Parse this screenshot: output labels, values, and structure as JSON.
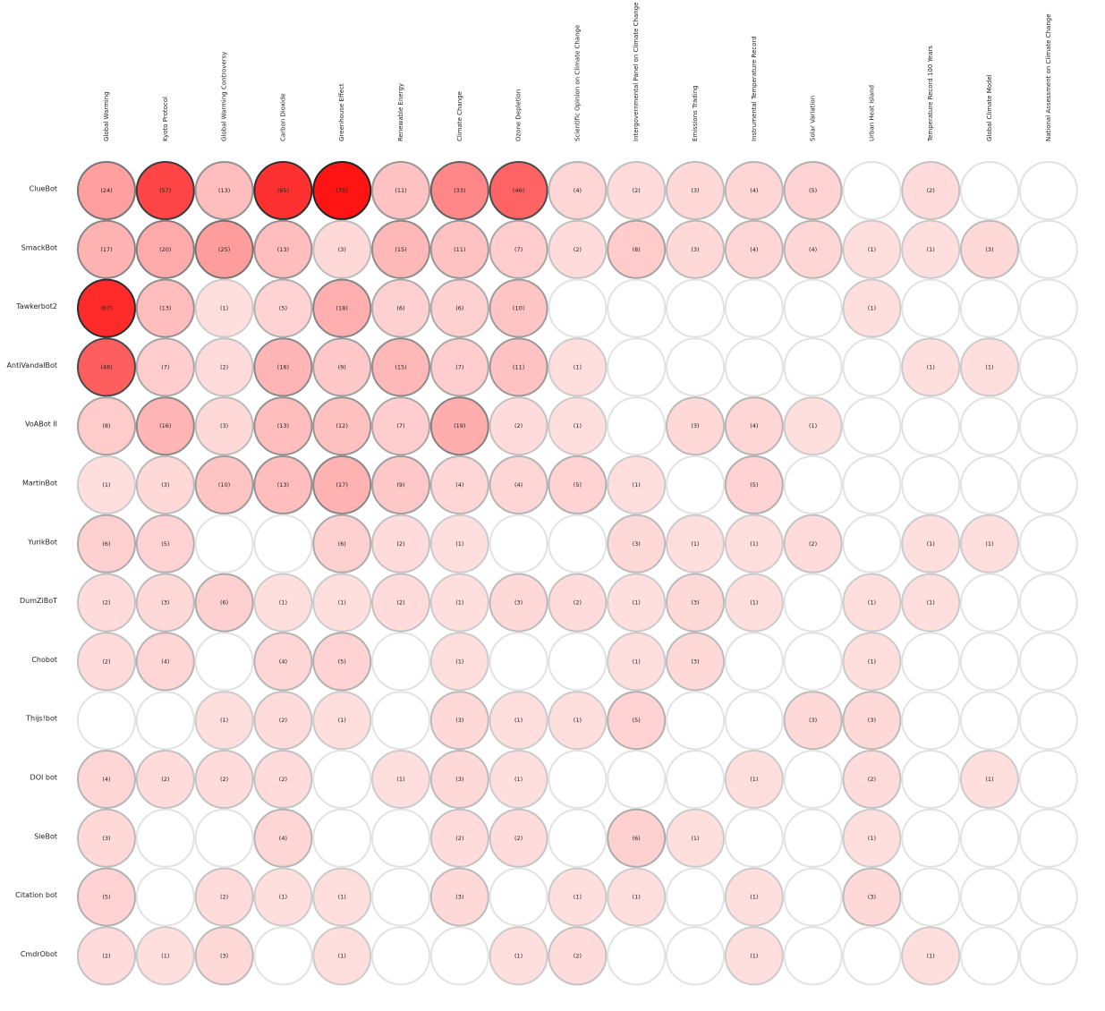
{
  "chart_data": {
    "type": "heatmap",
    "color": "#ff0000",
    "categories": [
      "Global Warming",
      "Kyoto Protocol",
      "Global Warming Controversy",
      "Carbon Dioxide",
      "Greenhouse Effect",
      "Renewable Energy",
      "Climate Change",
      "Ozone Depletion",
      "Scientific Opinion on Climate Change",
      "Intergovernmental Panel on Climate Change",
      "Emissions Trading",
      "Instrumental Temperature Record",
      "Solar Variation",
      "Urban Heat Island",
      "Temperature Record 100 Years",
      "Global Climate Model",
      "National Assessment on Climate Change"
    ],
    "series": [
      {
        "name": "ClueBot",
        "values": [
          24,
          57,
          13,
          65,
          75,
          11,
          33,
          46,
          4,
          2,
          3,
          4,
          5,
          null,
          2,
          null,
          null
        ],
        "value_labels": [
          "(24)",
          "(57)",
          "(13)",
          "(65)",
          "(75)",
          "(11)",
          "(33)",
          "(46)",
          "(4)",
          "(2)",
          "(3)",
          "(4)",
          "(5)",
          null,
          "(2)",
          null,
          null
        ]
      },
      {
        "name": "SmackBot",
        "values": [
          17,
          20,
          25,
          13,
          3,
          15,
          11,
          7,
          2,
          8,
          3,
          4,
          4,
          1,
          1,
          3,
          null
        ],
        "value_labels": [
          "(17)",
          "(20)",
          "(25)",
          "(13)",
          "(3)",
          "(15)",
          "(11)",
          "(7)",
          "(2)",
          "(8)",
          "(3)",
          "(4)",
          "(4)",
          "(1)",
          "(1)",
          "(3)",
          null
        ]
      },
      {
        "name": "Tawkerbot2",
        "values": [
          67,
          13,
          1,
          5,
          18,
          6,
          6,
          10,
          null,
          null,
          null,
          null,
          null,
          1,
          null,
          null,
          null
        ],
        "value_labels": [
          "(67)",
          "(13)",
          "(1)",
          "(5)",
          "(18)",
          "(6)",
          "(6)",
          "(10)",
          null,
          null,
          null,
          null,
          null,
          "(1)",
          null,
          null,
          null
        ]
      },
      {
        "name": "AntiVandalBot",
        "values": [
          48,
          7,
          2,
          16,
          9,
          15,
          7,
          11,
          1,
          null,
          null,
          null,
          null,
          null,
          1,
          1,
          null
        ],
        "value_labels": [
          "(48)",
          "(7)",
          "(2)",
          "(16)",
          "(9)",
          "(15)",
          "(7)",
          "(11)",
          "(1)",
          null,
          null,
          null,
          null,
          null,
          "(1)",
          "(1)",
          null
        ]
      },
      {
        "name": "VoABot II",
        "values": [
          8,
          16,
          3,
          13,
          12,
          7,
          19,
          2,
          1,
          null,
          3,
          4,
          1,
          null,
          null,
          null,
          null
        ],
        "value_labels": [
          "(8)",
          "(16)",
          "(3)",
          "(13)",
          "(12)",
          "(7)",
          "(19)",
          "(2)",
          "(1)",
          null,
          "(3)",
          "(4)",
          "(1)",
          null,
          null,
          null,
          null
        ]
      },
      {
        "name": "MartinBot",
        "values": [
          1,
          3,
          10,
          13,
          17,
          9,
          4,
          4,
          5,
          1,
          null,
          5,
          null,
          null,
          null,
          null,
          null
        ],
        "value_labels": [
          "(1)",
          "(3)",
          "(10)",
          "(13)",
          "(17)",
          "(9)",
          "(4)",
          "(4)",
          "(5)",
          "(1)",
          null,
          "(5)",
          null,
          null,
          null,
          null,
          null
        ]
      },
      {
        "name": "YurikBot",
        "values": [
          6,
          5,
          null,
          null,
          6,
          2,
          1,
          null,
          null,
          3,
          1,
          1,
          2,
          null,
          1,
          1,
          null
        ],
        "value_labels": [
          "(6)",
          "(5)",
          null,
          null,
          "(6)",
          "(2)",
          "(1)",
          null,
          null,
          "(3)",
          "(1)",
          "(1)",
          "(2)",
          null,
          "(1)",
          "(1)",
          null
        ]
      },
      {
        "name": "DumZiBoT",
        "values": [
          2,
          3,
          6,
          1,
          1,
          2,
          1,
          3,
          2,
          1,
          3,
          1,
          null,
          1,
          1,
          null,
          null
        ],
        "value_labels": [
          "(2)",
          "(3)",
          "(6)",
          "(1)",
          "(1)",
          "(2)",
          "(1)",
          "(3)",
          "(2)",
          "(1)",
          "(3)",
          "(1)",
          null,
          "(1)",
          "(1)",
          null,
          null
        ]
      },
      {
        "name": "Chobot",
        "values": [
          2,
          4,
          null,
          4,
          5,
          null,
          1,
          null,
          null,
          1,
          3,
          null,
          null,
          1,
          null,
          null,
          null
        ],
        "value_labels": [
          "(2)",
          "(4)",
          null,
          "(4)",
          "(5)",
          null,
          "(1)",
          null,
          null,
          "(1)",
          "(3)",
          null,
          null,
          "(1)",
          null,
          null,
          null
        ]
      },
      {
        "name": "Thijs!bot",
        "values": [
          null,
          null,
          1,
          2,
          1,
          null,
          3,
          1,
          1,
          5,
          null,
          null,
          3,
          3,
          null,
          null,
          null
        ],
        "value_labels": [
          null,
          null,
          "(1)",
          "(2)",
          "(1)",
          null,
          "(3)",
          "(1)",
          "(1)",
          "(5)",
          null,
          null,
          "(3)",
          "(3)",
          null,
          null,
          null
        ]
      },
      {
        "name": "DOI bot",
        "values": [
          4,
          2,
          2,
          2,
          null,
          1,
          3,
          1,
          null,
          null,
          null,
          1,
          null,
          2,
          null,
          1,
          null
        ],
        "value_labels": [
          "(4)",
          "(2)",
          "(2)",
          "(2)",
          null,
          "(1)",
          "(3)",
          "(1)",
          null,
          null,
          null,
          "(1)",
          null,
          "(2)",
          null,
          "(1)",
          null
        ]
      },
      {
        "name": "SieBot",
        "values": [
          3,
          null,
          null,
          4,
          null,
          null,
          2,
          2,
          null,
          6,
          1,
          null,
          null,
          1,
          null,
          null,
          null
        ],
        "value_labels": [
          "(3)",
          null,
          null,
          "(4)",
          null,
          null,
          "(2)",
          "(2)",
          null,
          "(6)",
          "(1)",
          null,
          null,
          "(1)",
          null,
          null,
          null
        ]
      },
      {
        "name": "Citation bot",
        "values": [
          5,
          null,
          2,
          1,
          1,
          null,
          3,
          null,
          1,
          1,
          null,
          1,
          null,
          3,
          null,
          null,
          null
        ],
        "value_labels": [
          "(5)",
          null,
          "(2)",
          "(1)",
          "(1)",
          null,
          "(3)",
          null,
          "(1)",
          "(1)",
          null,
          "(1)",
          null,
          "(3)",
          null,
          null,
          null
        ]
      },
      {
        "name": "CmdrObot",
        "values": [
          2,
          1,
          3,
          null,
          1,
          null,
          null,
          1,
          2,
          null,
          null,
          1,
          null,
          null,
          1,
          null,
          null
        ],
        "value_labels": [
          "(2)",
          "(1)",
          "(3)",
          null,
          "(1)",
          null,
          null,
          "(1)",
          "(2)",
          null,
          null,
          "(1)",
          null,
          null,
          "(1)",
          null,
          null
        ]
      }
    ]
  }
}
